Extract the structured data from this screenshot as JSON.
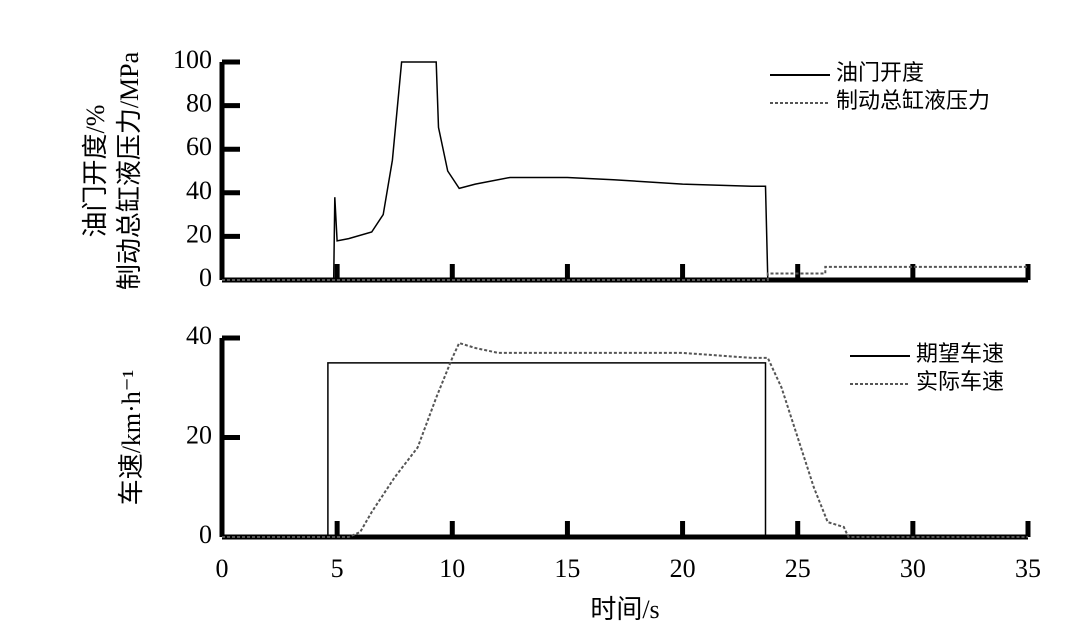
{
  "chart_data": [
    {
      "type": "line",
      "ylabel": [
        "油门开度/%",
        "制动总缸液压力/MPa"
      ],
      "xlim": [
        0,
        35
      ],
      "xticks": [
        0,
        5,
        10,
        15,
        20,
        25,
        30,
        35
      ],
      "show_xtick_labels": false,
      "ylim": [
        0,
        100
      ],
      "yticks": [
        0,
        20,
        40,
        60,
        80,
        100
      ],
      "legend": "upper right",
      "series": [
        {
          "name": "油门开度",
          "color": "#000000",
          "style": "solid",
          "x": [
            0,
            4.85,
            4.9,
            5.0,
            5.5,
            6.5,
            7.0,
            7.4,
            7.8,
            9.3,
            9.4,
            9.8,
            10.3,
            11.0,
            12.5,
            15.0,
            17.0,
            20.0,
            23.0,
            23.6,
            23.7,
            35
          ],
          "values": [
            0,
            0,
            38,
            18,
            19,
            22,
            30,
            55,
            100,
            100,
            70,
            50,
            42,
            44,
            47,
            47,
            46,
            44,
            43,
            43,
            0,
            0
          ]
        },
        {
          "name": "制动总缸液压力",
          "color": "#555555",
          "style": "dotted",
          "x": [
            0,
            23.7,
            23.7,
            26.2,
            26.2,
            35
          ],
          "values": [
            0,
            0,
            3,
            3,
            6,
            6
          ]
        }
      ]
    },
    {
      "type": "line",
      "ylabel": [
        "车速/km·h⁻¹"
      ],
      "xlabel": "时间/s",
      "xlim": [
        0,
        35
      ],
      "xticks": [
        0,
        5,
        10,
        15,
        20,
        25,
        30,
        35
      ],
      "show_xtick_labels": true,
      "ylim": [
        0,
        40
      ],
      "yticks": [
        0,
        20,
        40
      ],
      "legend": "upper right",
      "series": [
        {
          "name": "期望车速",
          "color": "#000000",
          "style": "solid",
          "x": [
            0,
            4.6,
            4.6,
            23.6,
            23.6,
            35
          ],
          "values": [
            0,
            0,
            35,
            35,
            0,
            0
          ]
        },
        {
          "name": "实际车速",
          "color": "#555555",
          "style": "dotted",
          "x": [
            0,
            5.5,
            6.0,
            6.5,
            7.5,
            8.5,
            9.3,
            10.0,
            10.3,
            11.0,
            12.0,
            15.0,
            20.0,
            23.0,
            23.7,
            24.3,
            25.0,
            25.7,
            26.3,
            27.0,
            27.2,
            35
          ],
          "values": [
            0,
            0,
            1,
            5,
            12,
            18,
            28,
            36,
            39,
            38,
            37,
            37,
            37,
            36,
            36,
            30,
            20,
            10,
            3,
            2,
            0,
            0
          ]
        }
      ]
    }
  ]
}
